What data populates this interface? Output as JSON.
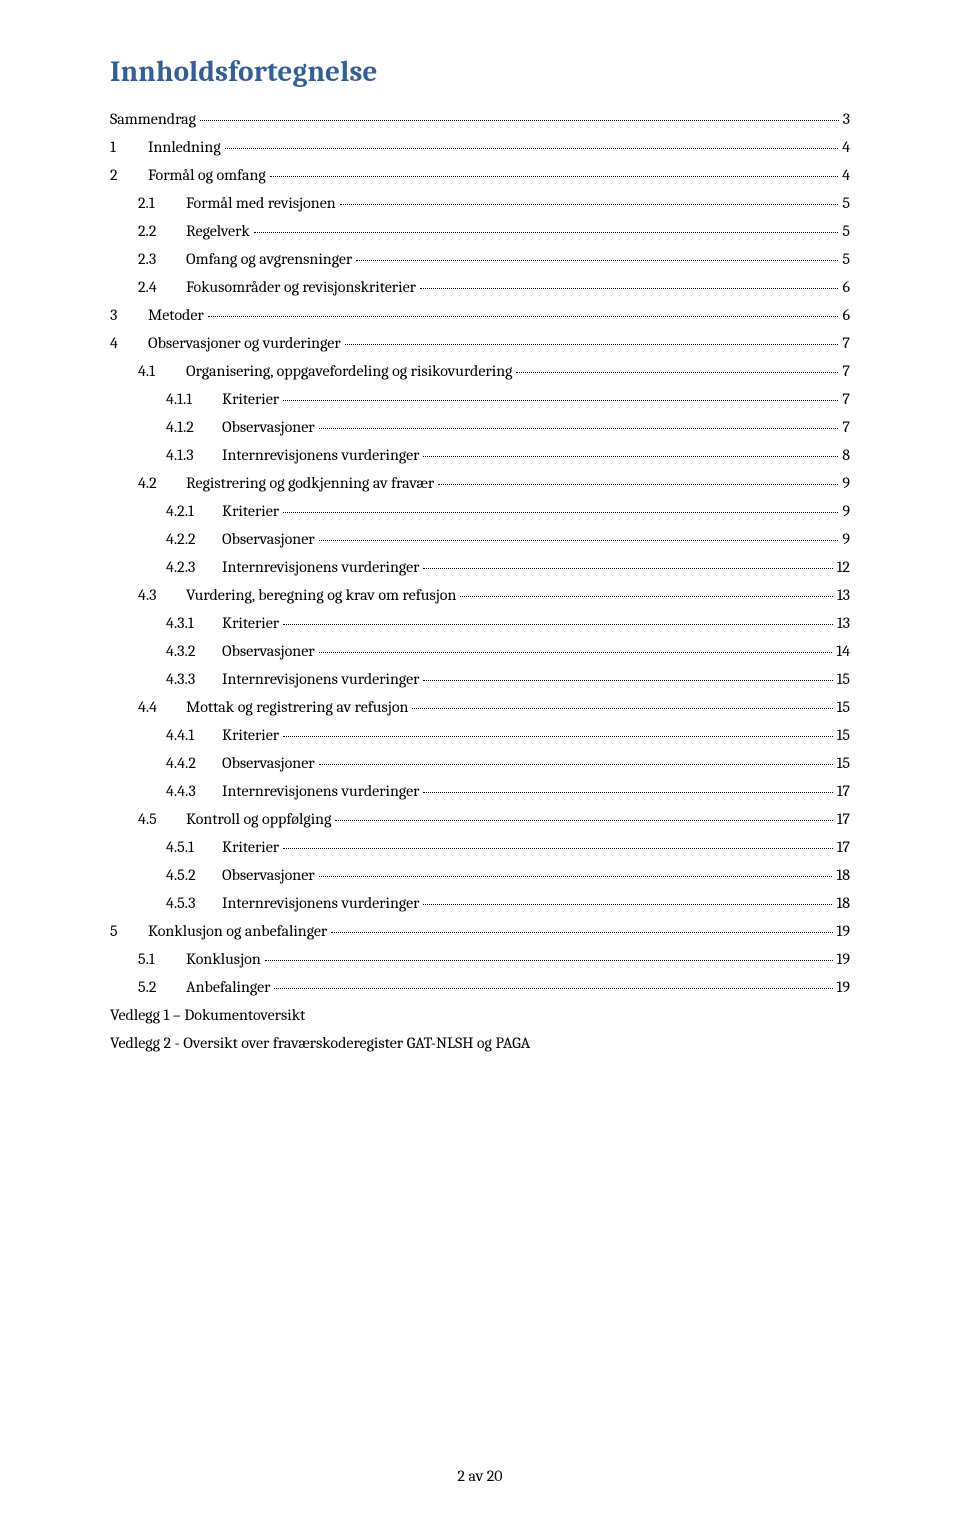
{
  "title": "Innholdsfortegnelse",
  "footer": "2 av 20",
  "toc": [
    {
      "indent": 0,
      "num": "",
      "text": "Sammendrag",
      "page": "3",
      "numw": 0,
      "numpad": ""
    },
    {
      "indent": 0,
      "num": "1",
      "text": "Innledning",
      "page": "4",
      "numw": 38,
      "numpad": "       "
    },
    {
      "indent": 0,
      "num": "2",
      "text": "Formål og omfang",
      "page": "4",
      "numw": 38,
      "numpad": "       "
    },
    {
      "indent": 1,
      "num": "2.1",
      "text": "Formål med revisjonen",
      "page": "5",
      "numw": 48,
      "numpad": "      "
    },
    {
      "indent": 1,
      "num": "2.2",
      "text": "Regelverk",
      "page": "5",
      "numw": 48,
      "numpad": "      "
    },
    {
      "indent": 1,
      "num": "2.3",
      "text": "Omfang og avgrensninger",
      "page": "5",
      "numw": 48,
      "numpad": "      "
    },
    {
      "indent": 1,
      "num": "2.4",
      "text": "Fokusområder og revisjonskriterier",
      "page": "6",
      "numw": 48,
      "numpad": "      "
    },
    {
      "indent": 0,
      "num": "3",
      "text": "Metoder",
      "page": "6",
      "numw": 38,
      "numpad": "       "
    },
    {
      "indent": 0,
      "num": "4",
      "text": "Observasjoner og vurderinger",
      "page": "7",
      "numw": 38,
      "numpad": "       "
    },
    {
      "indent": 1,
      "num": "4.1",
      "text": "Organisering, oppgavefordeling og risikovurdering",
      "page": "7",
      "numw": 48,
      "numpad": "      "
    },
    {
      "indent": 2,
      "num": "4.1.1",
      "text": "Kriterier",
      "page": "7",
      "numw": 56,
      "numpad": "    "
    },
    {
      "indent": 2,
      "num": "4.1.2",
      "text": "Observasjoner",
      "page": "7",
      "numw": 56,
      "numpad": "    "
    },
    {
      "indent": 2,
      "num": "4.1.3",
      "text": "Internrevisjonens vurderinger",
      "page": "8",
      "numw": 56,
      "numpad": "    "
    },
    {
      "indent": 1,
      "num": "4.2",
      "text": "Registrering og godkjenning av fravær",
      "page": "9",
      "numw": 48,
      "numpad": "      "
    },
    {
      "indent": 2,
      "num": "4.2.1",
      "text": "Kriterier",
      "page": "9",
      "numw": 56,
      "numpad": "    "
    },
    {
      "indent": 2,
      "num": "4.2.2",
      "text": "Observasjoner",
      "page": "9",
      "numw": 56,
      "numpad": "    "
    },
    {
      "indent": 2,
      "num": "4.2.3",
      "text": "Internrevisjonens vurderinger",
      "page": "12",
      "numw": 56,
      "numpad": "    "
    },
    {
      "indent": 1,
      "num": "4.3",
      "text": "Vurdering, beregning og krav om refusjon",
      "page": "13",
      "numw": 48,
      "numpad": "      "
    },
    {
      "indent": 2,
      "num": "4.3.1",
      "text": "Kriterier",
      "page": "13",
      "numw": 56,
      "numpad": "    "
    },
    {
      "indent": 2,
      "num": "4.3.2",
      "text": "Observasjoner",
      "page": "14",
      "numw": 56,
      "numpad": "    "
    },
    {
      "indent": 2,
      "num": "4.3.3",
      "text": "Internrevisjonens vurderinger",
      "page": "15",
      "numw": 56,
      "numpad": "    "
    },
    {
      "indent": 1,
      "num": "4.4",
      "text": "Mottak og registrering av refusjon",
      "page": "15",
      "numw": 48,
      "numpad": "      "
    },
    {
      "indent": 2,
      "num": "4.4.1",
      "text": "Kriterier",
      "page": "15",
      "numw": 56,
      "numpad": "    "
    },
    {
      "indent": 2,
      "num": "4.4.2",
      "text": "Observasjoner",
      "page": "15",
      "numw": 56,
      "numpad": "    "
    },
    {
      "indent": 2,
      "num": "4.4.3",
      "text": "Internrevisjonens vurderinger",
      "page": "17",
      "numw": 56,
      "numpad": "    "
    },
    {
      "indent": 1,
      "num": "4.5",
      "text": "Kontroll og oppfølging",
      "page": "17",
      "numw": 48,
      "numpad": "      "
    },
    {
      "indent": 2,
      "num": "4.5.1",
      "text": "Kriterier",
      "page": "17",
      "numw": 56,
      "numpad": "    "
    },
    {
      "indent": 2,
      "num": "4.5.2",
      "text": "Observasjoner",
      "page": "18",
      "numw": 56,
      "numpad": "    "
    },
    {
      "indent": 2,
      "num": "4.5.3",
      "text": "Internrevisjonens vurderinger",
      "page": "18",
      "numw": 56,
      "numpad": "    "
    },
    {
      "indent": 0,
      "num": "5",
      "text": "Konklusjon og anbefalinger",
      "page": "19",
      "numw": 38,
      "numpad": "       "
    },
    {
      "indent": 1,
      "num": "5.1",
      "text": "Konklusjon",
      "page": "19",
      "numw": 48,
      "numpad": "      "
    },
    {
      "indent": 1,
      "num": "5.2",
      "text": "Anbefalinger",
      "page": "19",
      "numw": 48,
      "numpad": "      "
    },
    {
      "indent": 0,
      "num": "",
      "text": "Vedlegg 1 – Dokumentoversikt",
      "page": "",
      "numw": 0,
      "numpad": "",
      "noleader": true
    },
    {
      "indent": 0,
      "num": "",
      "text": "Vedlegg 2 - Oversikt over fraværskoderegister GAT-NLSH og PAGA",
      "page": "",
      "numw": 0,
      "numpad": "",
      "noleader": true
    }
  ]
}
